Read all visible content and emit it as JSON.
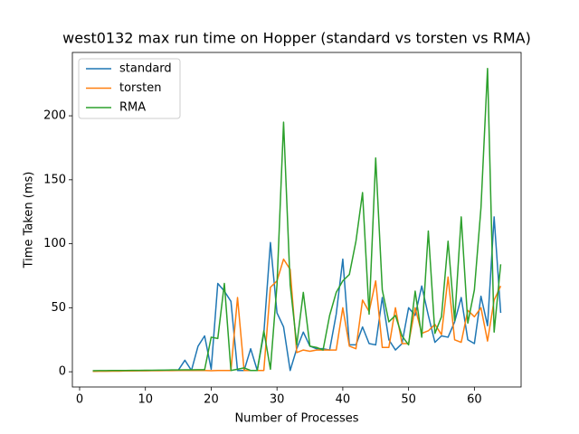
{
  "chart_data": {
    "type": "line",
    "title": "west0132 max run time on Hopper (standard vs torsten vs RMA)",
    "x_label": "Number of Processes",
    "y_label": "Time Taken (ms)",
    "x": [
      2,
      3,
      4,
      5,
      6,
      7,
      8,
      9,
      10,
      11,
      12,
      13,
      14,
      15,
      16,
      17,
      18,
      19,
      20,
      21,
      22,
      23,
      24,
      25,
      26,
      27,
      28,
      29,
      30,
      31,
      32,
      33,
      34,
      35,
      36,
      37,
      38,
      39,
      40,
      41,
      42,
      43,
      44,
      45,
      46,
      47,
      48,
      49,
      50,
      51,
      52,
      53,
      54,
      55,
      56,
      57,
      58,
      59,
      60,
      61,
      62,
      63,
      64
    ],
    "series": [
      {
        "name": "standard",
        "color": "#1f77b4",
        "values": [
          0.5,
          0.6,
          0.6,
          0.7,
          0.7,
          0.8,
          0.8,
          0.9,
          0.9,
          1,
          1,
          1.2,
          1.3,
          1.2,
          9,
          1,
          20,
          28,
          2,
          69,
          63,
          55,
          1,
          1,
          18,
          1,
          30,
          101,
          46,
          35,
          1,
          18,
          31,
          20,
          18,
          18,
          17,
          45,
          88,
          21,
          21,
          35,
          22,
          21,
          58,
          25,
          17,
          22,
          50,
          44,
          67,
          44,
          23,
          28,
          27,
          39,
          58,
          25,
          22,
          59,
          36,
          121,
          46
        ]
      },
      {
        "name": "torsten",
        "color": "#ff7f0e",
        "values": [
          0.3,
          0.4,
          0.4,
          0.5,
          0.5,
          0.6,
          0.6,
          0.7,
          0.7,
          0.8,
          0.8,
          0.9,
          0.9,
          1,
          1,
          1,
          1,
          1,
          0.8,
          1,
          1,
          1,
          58,
          1,
          1,
          1,
          1,
          66,
          71,
          88,
          80,
          15,
          17,
          16,
          17,
          17,
          17,
          17,
          50,
          20,
          18,
          56,
          47,
          71,
          19,
          19,
          50,
          22,
          22,
          50,
          30,
          32,
          37,
          29,
          74,
          25,
          23,
          48,
          43,
          50,
          24,
          56,
          67
        ]
      },
      {
        "name": "RMA",
        "color": "#2ca02c",
        "values": [
          0.8,
          0.9,
          0.9,
          1,
          1,
          1,
          1.1,
          1.1,
          1.2,
          1.2,
          1.3,
          1.3,
          1.4,
          1.4,
          1.5,
          1.5,
          1.6,
          1.6,
          27,
          26,
          69,
          1,
          2,
          3,
          1,
          1,
          32,
          2,
          68,
          195,
          68,
          21,
          62,
          20,
          19,
          17,
          44,
          62,
          71,
          76,
          102,
          140,
          45,
          167,
          64,
          39,
          44,
          28,
          21,
          63,
          27,
          110,
          30,
          43,
          102,
          40,
          121,
          38,
          64,
          128,
          237,
          31,
          84
        ]
      }
    ],
    "xlim": [
      -1.1,
      67.1
    ],
    "ylim": [
      -11.9,
      249.5
    ],
    "xticks": [
      0,
      10,
      20,
      30,
      40,
      50,
      60
    ],
    "yticks": [
      0,
      50,
      100,
      150,
      200
    ],
    "legend": "upper left"
  }
}
